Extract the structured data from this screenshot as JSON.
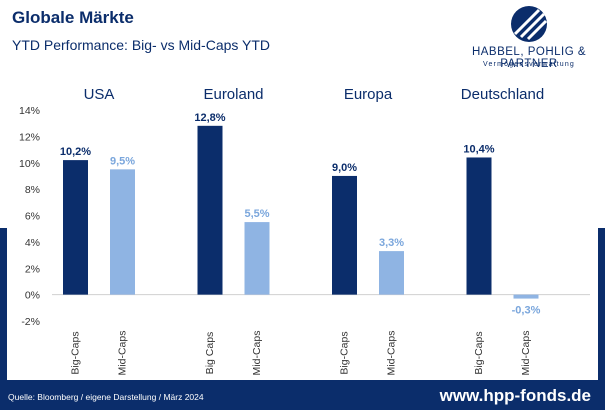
{
  "header": {
    "title": "Globale Märkte",
    "subtitle": "YTD Performance: Big- vs Mid-Caps YTD"
  },
  "logo": {
    "name": "HABBEL, POHLIG & PARTNER",
    "tagline": "Vermögensverwaltung"
  },
  "footer": {
    "source": "Quelle: Bloomberg / eigene Darstellung / März 2024",
    "website": "www.hpp-fonds.de"
  },
  "colors": {
    "brand": "#0b2d6b",
    "big_caps": "#0b2d6b",
    "mid_caps": "#8fb4e3",
    "mid_caps_label": "#7aa6dc"
  },
  "chart_data": {
    "type": "bar",
    "title": "",
    "xlabel": "",
    "ylabel": "",
    "ylim": [
      -2,
      14
    ],
    "yticks": [
      -2,
      0,
      2,
      4,
      6,
      8,
      10,
      12,
      14
    ],
    "ytick_labels": [
      "-2%",
      "0%",
      "2%",
      "4%",
      "6%",
      "8%",
      "10%",
      "12%",
      "14%"
    ],
    "grid": false,
    "legend": "none",
    "groups": [
      {
        "name": "USA",
        "bars": [
          {
            "label": "Big-Caps",
            "value": 10.2,
            "value_label": "10,2%"
          },
          {
            "label": "Mid-Caps",
            "value": 9.5,
            "value_label": "9,5%"
          }
        ]
      },
      {
        "name": "Euroland",
        "bars": [
          {
            "label": "Big Caps",
            "value": 12.8,
            "value_label": "12,8%"
          },
          {
            "label": "Mid-Caps",
            "value": 5.5,
            "value_label": "5,5%"
          }
        ]
      },
      {
        "name": "Europa",
        "bars": [
          {
            "label": "Big-Caps",
            "value": 9.0,
            "value_label": "9,0%"
          },
          {
            "label": "Mid-Caps",
            "value": 3.3,
            "value_label": "3,3%"
          }
        ]
      },
      {
        "name": "Deutschland",
        "bars": [
          {
            "label": "Big-Caps",
            "value": 10.4,
            "value_label": "10,4%"
          },
          {
            "label": "Mid-Caps",
            "value": -0.3,
            "value_label": "-0,3%"
          }
        ]
      }
    ]
  }
}
